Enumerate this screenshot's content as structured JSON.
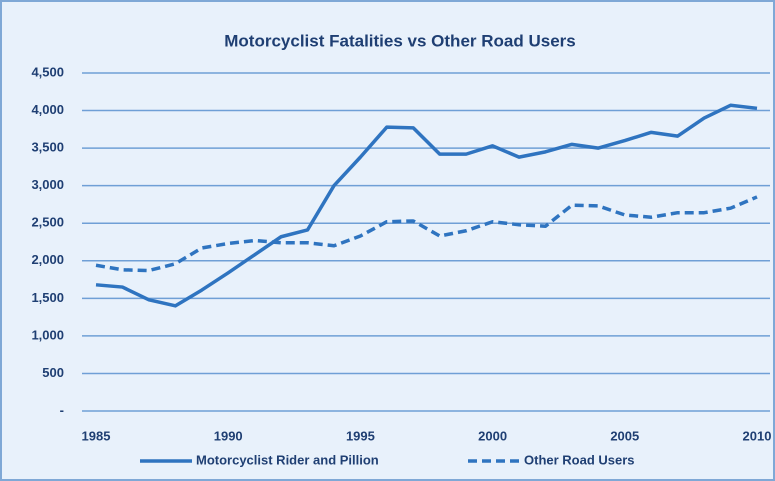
{
  "chart_data": {
    "type": "line",
    "title": "Motorcyclist Fatalities vs Other Road Users",
    "x": [
      1985,
      1986,
      1987,
      1988,
      1989,
      1990,
      1991,
      1992,
      1993,
      1994,
      1995,
      1996,
      1997,
      1998,
      1999,
      2000,
      2001,
      2002,
      2003,
      2004,
      2005,
      2006,
      2007,
      2008,
      2009,
      2010
    ],
    "series": [
      {
        "name": "Motorcyclist Rider and Pillion",
        "color": "#2f74c0",
        "dash": "solid",
        "values": [
          1680,
          1650,
          1480,
          1400,
          1610,
          1840,
          2080,
          2320,
          2410,
          3000,
          3380,
          3780,
          3770,
          3420,
          3420,
          3530,
          3380,
          3450,
          3550,
          3500,
          3600,
          3710,
          3660,
          3900,
          4070,
          4030
        ]
      },
      {
        "name": "Other Road Users",
        "color": "#2f74c0",
        "dash": "dashed",
        "values": [
          1940,
          1880,
          1870,
          1960,
          2170,
          2230,
          2270,
          2240,
          2240,
          2200,
          2330,
          2520,
          2530,
          2330,
          2400,
          2520,
          2480,
          2460,
          2740,
          2730,
          2610,
          2580,
          2640,
          2640,
          2700,
          2850
        ]
      }
    ],
    "xlim": [
      1985,
      2010
    ],
    "xticks": [
      1985,
      1990,
      1995,
      2000,
      2005,
      2010
    ],
    "ylim": [
      0,
      4500
    ],
    "yticks": [
      {
        "value": 0,
        "label": "-"
      },
      500,
      {
        "value": 1000,
        "label": "1,000"
      },
      {
        "value": 1500,
        "label": "1,500"
      },
      {
        "value": 2000,
        "label": "2,000"
      },
      {
        "value": 2500,
        "label": "2,500"
      },
      {
        "value": 3000,
        "label": "3,000"
      },
      {
        "value": 3500,
        "label": "3,500"
      },
      {
        "value": 4000,
        "label": "4,000"
      },
      {
        "value": 4500,
        "label": "4,500"
      }
    ],
    "grid": true,
    "legend": "bottom"
  }
}
